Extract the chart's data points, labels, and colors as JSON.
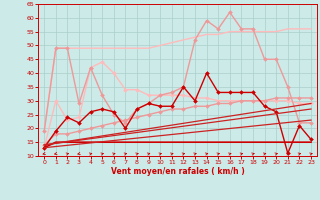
{
  "xlabel": "Vent moyen/en rafales ( km/h )",
  "xlim": [
    -0.5,
    23.5
  ],
  "ylim": [
    10,
    65
  ],
  "yticks": [
    10,
    15,
    20,
    25,
    30,
    35,
    40,
    45,
    50,
    55,
    60,
    65
  ],
  "xticks": [
    0,
    1,
    2,
    3,
    4,
    5,
    6,
    7,
    8,
    9,
    10,
    11,
    12,
    13,
    14,
    15,
    16,
    17,
    18,
    19,
    20,
    21,
    22,
    23
  ],
  "bg_color": "#cceae8",
  "grid_color": "#aad0cc",
  "series": [
    {
      "name": "light_upper_flat",
      "color": "#ffbbbb",
      "lw": 1.0,
      "marker": null,
      "x": [
        0,
        1,
        2,
        3,
        4,
        5,
        6,
        7,
        8,
        9,
        10,
        11,
        12,
        13,
        14,
        15,
        16,
        17,
        18,
        19,
        20,
        21,
        22,
        23
      ],
      "y": [
        19,
        49,
        49,
        49,
        49,
        49,
        49,
        49,
        49,
        49,
        50,
        51,
        52,
        53,
        54,
        54,
        55,
        55,
        55,
        55,
        55,
        56,
        56,
        56
      ]
    },
    {
      "name": "light_lower_wiggly",
      "color": "#ffbbbb",
      "lw": 1.0,
      "marker": "D",
      "markersize": 2,
      "x": [
        0,
        1,
        2,
        3,
        4,
        5,
        6,
        7,
        8,
        9,
        10,
        11,
        12,
        13,
        14,
        15,
        16,
        17,
        18,
        19,
        20,
        21,
        22,
        23
      ],
      "y": [
        13,
        30,
        23,
        24,
        42,
        44,
        40,
        34,
        34,
        32,
        32,
        32,
        32,
        31,
        31,
        30,
        30,
        30,
        30,
        30,
        30,
        30,
        29,
        29
      ]
    },
    {
      "name": "pink_rising_diagonal",
      "color": "#ee9999",
      "lw": 1.0,
      "marker": "D",
      "markersize": 2,
      "x": [
        0,
        1,
        2,
        3,
        4,
        5,
        6,
        7,
        8,
        9,
        10,
        11,
        12,
        13,
        14,
        15,
        16,
        17,
        18,
        19,
        20,
        21,
        22,
        23
      ],
      "y": [
        14,
        18,
        18,
        19,
        20,
        21,
        22,
        23,
        24,
        25,
        26,
        27,
        27,
        28,
        28,
        29,
        29,
        30,
        30,
        30,
        31,
        31,
        31,
        31
      ]
    },
    {
      "name": "pink_upper_wiggly",
      "color": "#ee9999",
      "lw": 1.0,
      "marker": "D",
      "markersize": 2,
      "x": [
        0,
        1,
        2,
        3,
        4,
        5,
        6,
        7,
        8,
        9,
        10,
        11,
        12,
        13,
        14,
        15,
        16,
        17,
        18,
        19,
        20,
        21,
        22,
        23
      ],
      "y": [
        19,
        49,
        49,
        29,
        42,
        32,
        25,
        22,
        27,
        29,
        32,
        33,
        35,
        52,
        59,
        56,
        62,
        56,
        56,
        45,
        45,
        35,
        22,
        22
      ]
    },
    {
      "name": "red_jagged_main",
      "color": "#cc0000",
      "lw": 1.0,
      "marker": "D",
      "markersize": 2,
      "x": [
        0,
        1,
        2,
        3,
        4,
        5,
        6,
        7,
        8,
        9,
        10,
        11,
        12,
        13,
        14,
        15,
        16,
        17,
        18,
        19,
        20,
        21,
        22,
        23
      ],
      "y": [
        13,
        19,
        24,
        22,
        26,
        27,
        26,
        20,
        27,
        29,
        28,
        28,
        35,
        30,
        40,
        33,
        33,
        33,
        33,
        28,
        26,
        11,
        21,
        16
      ]
    },
    {
      "name": "red_flat_bottom",
      "color": "#cc0000",
      "lw": 1.2,
      "marker": null,
      "x": [
        0,
        1,
        2,
        3,
        4,
        5,
        6,
        7,
        8,
        9,
        10,
        11,
        12,
        13,
        14,
        15,
        16,
        17,
        18,
        19,
        20,
        21,
        22,
        23
      ],
      "y": [
        13,
        15,
        15,
        15,
        15,
        15,
        15,
        15,
        15,
        15,
        15,
        15,
        15,
        15,
        15,
        15,
        15,
        15,
        15,
        15,
        15,
        15,
        15,
        15
      ]
    },
    {
      "name": "red_diag1",
      "color": "#cc2222",
      "lw": 0.9,
      "marker": null,
      "x": [
        0,
        23
      ],
      "y": [
        14,
        29
      ]
    },
    {
      "name": "red_diag2",
      "color": "#cc2222",
      "lw": 0.9,
      "marker": null,
      "x": [
        0,
        23
      ],
      "y": [
        14,
        27
      ]
    },
    {
      "name": "red_diag3",
      "color": "#cc2222",
      "lw": 0.9,
      "marker": null,
      "x": [
        0,
        23
      ],
      "y": [
        13,
        23
      ]
    }
  ],
  "arrows": {
    "color": "#cc0000",
    "y_axis": 10.5,
    "angles_deg": [
      225,
      225,
      45,
      225,
      45,
      45,
      45,
      45,
      45,
      45,
      45,
      45,
      45,
      45,
      45,
      45,
      45,
      45,
      45,
      45,
      45,
      45,
      45,
      45
    ]
  }
}
